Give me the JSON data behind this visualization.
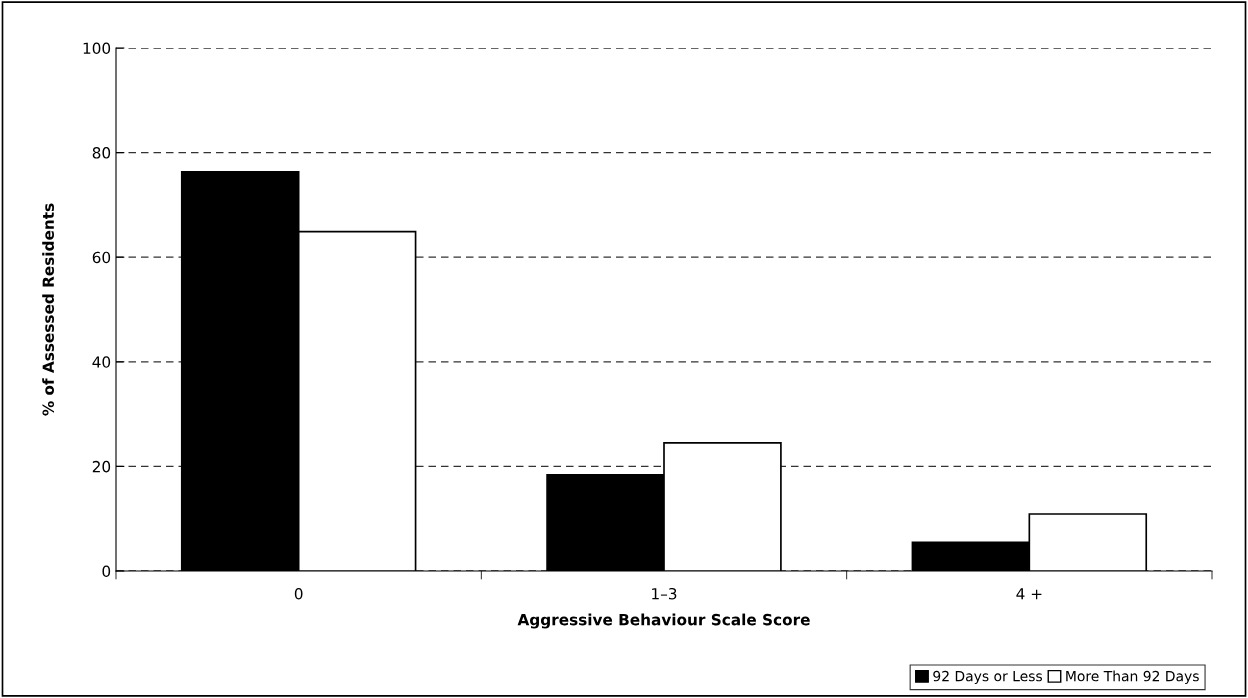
{
  "chart_data": {
    "type": "bar",
    "xlabel": "Aggressive Behaviour Scale Score",
    "ylabel": "% of Assessed Residents",
    "categories": [
      "0",
      "1–3",
      "4 +"
    ],
    "series": [
      {
        "name": "92 Days or Less",
        "color": "#000000",
        "values": [
          76.3,
          18.4,
          5.5
        ]
      },
      {
        "name": "More Than 92 Days",
        "color": "#ffffff",
        "values": [
          64.9,
          24.5,
          10.9
        ]
      }
    ],
    "ylim": [
      0,
      100
    ],
    "yticks": [
      0,
      20,
      40,
      60,
      80,
      100
    ],
    "grid": "y",
    "legend": "bottom right"
  }
}
